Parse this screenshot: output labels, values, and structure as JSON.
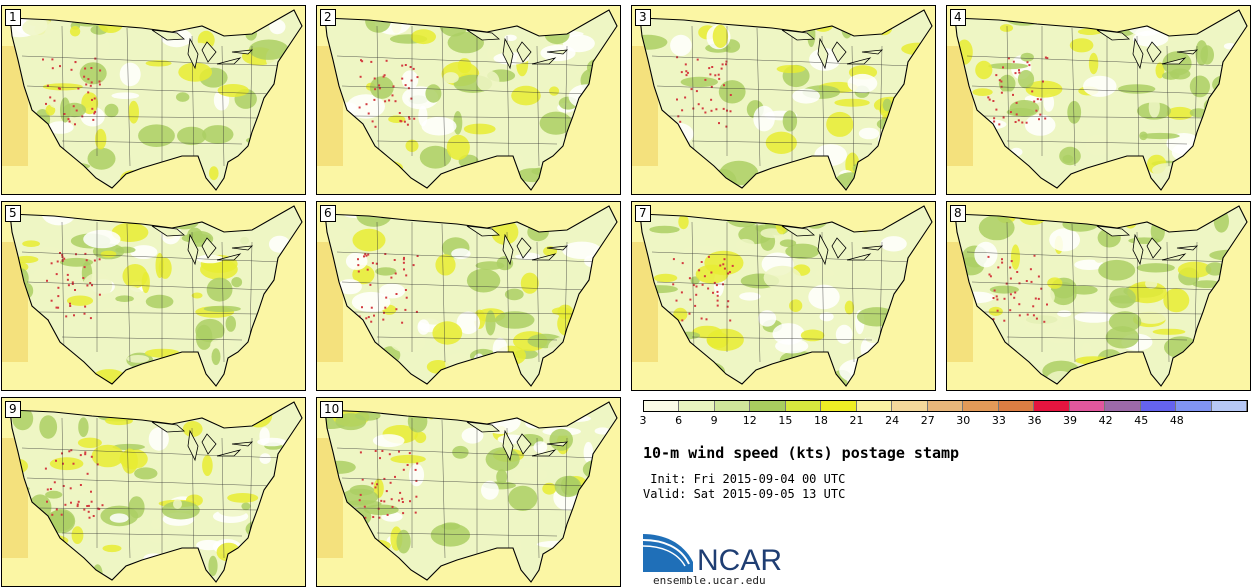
{
  "title": "10-m wind speed (kts) postage stamp",
  "init": "Init: Fri 2015-09-04 00 UTC",
  "valid": "Valid: Sat 2015-09-05 13 UTC",
  "logo_text": "NCAR",
  "site": "ensemble.ucar.edu",
  "members": [
    {
      "label": "1"
    },
    {
      "label": "2"
    },
    {
      "label": "3"
    },
    {
      "label": "4"
    },
    {
      "label": "5"
    },
    {
      "label": "6"
    },
    {
      "label": "7"
    },
    {
      "label": "8"
    },
    {
      "label": "9"
    },
    {
      "label": "10"
    }
  ],
  "colorbar": {
    "units": "kts",
    "ticks": [
      "3",
      "6",
      "9",
      "12",
      "15",
      "18",
      "21",
      "24",
      "27",
      "30",
      "33",
      "36",
      "39",
      "42",
      "45",
      "48"
    ],
    "colors": [
      "#fbfbe6",
      "#e9f5bf",
      "#cfe69a",
      "#a8cd5f",
      "#d7e83e",
      "#efee25",
      "#fbf3a2",
      "#f4d89b",
      "#e9b77a",
      "#e39a58",
      "#dc7e43",
      "#e5153f",
      "#e2579d",
      "#9d6aa8",
      "#6563ef",
      "#8194f3",
      "#b7c8f5"
    ]
  },
  "map_palette": {
    "ocean": "#fbf6a4",
    "ocean_far": "#f3dc73",
    "calm": "#ffffff",
    "light": "#eef6c4",
    "green": "#abcf64",
    "yellow": "#e8ec33",
    "gust": "#d33b3f"
  }
}
